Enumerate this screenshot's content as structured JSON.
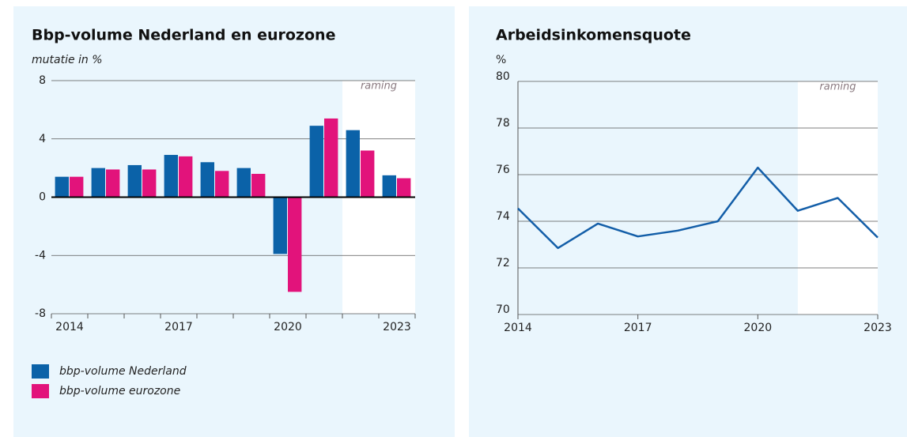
{
  "chart_data": [
    {
      "type": "bar",
      "title": "Bbp-volume Nederland en eurozone",
      "y_label": "mutatie in %",
      "categories": [
        "2014",
        null,
        null,
        "2017",
        null,
        null,
        "2020",
        null,
        null,
        "2023"
      ],
      "series": [
        {
          "name": "bbp-volume Nederland",
          "color": "#0b62a8",
          "values": [
            1.4,
            2.0,
            2.2,
            2.9,
            2.4,
            2.0,
            -3.9,
            4.9,
            4.6,
            1.5
          ]
        },
        {
          "name": "bbp-volume eurozone",
          "color": "#e2137b",
          "values": [
            1.4,
            1.9,
            1.9,
            2.8,
            1.8,
            1.6,
            -6.5,
            5.4,
            3.2,
            1.3
          ]
        }
      ],
      "ylim": [
        -8,
        8
      ],
      "yticks": [
        -8,
        -4,
        0,
        4,
        8
      ],
      "grid": true,
      "annotation": "raming",
      "shade_from_index": 8
    },
    {
      "type": "line",
      "title": "Arbeidsinkomensquote",
      "y_label": "%",
      "x": [
        2014,
        2015,
        2016,
        2017,
        2018,
        2019,
        2020,
        2021,
        2022,
        2023
      ],
      "series": [
        {
          "color": "#135ea8",
          "values": [
            74.55,
            72.85,
            73.9,
            73.35,
            73.6,
            74.0,
            76.3,
            74.45,
            75.0,
            73.3
          ]
        }
      ],
      "xlim": [
        2014,
        2023
      ],
      "xticks": [
        2014,
        2017,
        2020,
        2023
      ],
      "ylim": [
        70,
        80
      ],
      "yticks": [
        70,
        72,
        74,
        76,
        78,
        80
      ],
      "grid": true,
      "annotation": "raming",
      "shade_xlim": [
        2021,
        2023
      ]
    }
  ]
}
